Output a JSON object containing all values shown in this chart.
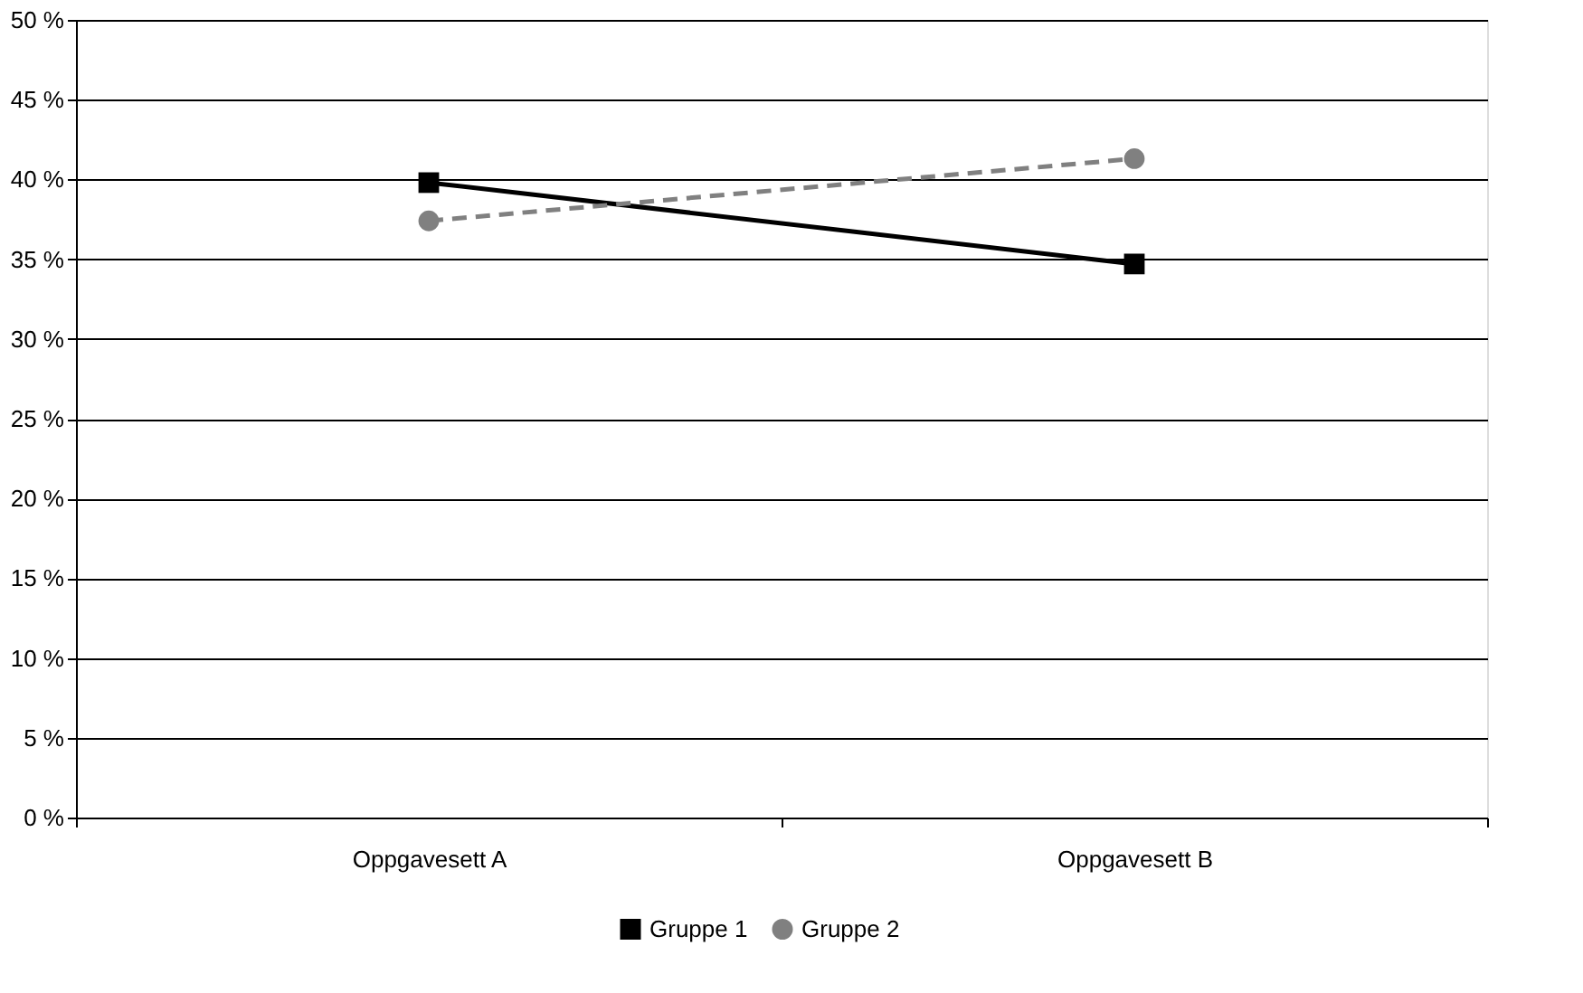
{
  "chart_data": {
    "type": "line",
    "categories": [
      "Oppgavesett A",
      "Oppgavesett B"
    ],
    "series": [
      {
        "name": "Gruppe 1",
        "color": "#000000",
        "values": [
          39.8,
          34.7
        ],
        "marker": "square",
        "line_style": "solid"
      },
      {
        "name": "Gruppe 2",
        "color": "#808080",
        "values": [
          37.4,
          41.3
        ],
        "marker": "circle",
        "line_style": "dashed"
      }
    ],
    "ylim": [
      0,
      50
    ],
    "yticks": [
      {
        "value": 0,
        "label": "0 %"
      },
      {
        "value": 5,
        "label": "5 %"
      },
      {
        "value": 10,
        "label": "10 %"
      },
      {
        "value": 15,
        "label": "15 %"
      },
      {
        "value": 20,
        "label": "20 %"
      },
      {
        "value": 25,
        "label": "25 %"
      },
      {
        "value": 30,
        "label": "30 %"
      },
      {
        "value": 35,
        "label": "35 %"
      },
      {
        "value": 40,
        "label": "40 %"
      },
      {
        "value": 45,
        "label": "45 %"
      },
      {
        "value": 50,
        "label": "50 %"
      }
    ],
    "grid": "y",
    "legend": "bottom"
  }
}
